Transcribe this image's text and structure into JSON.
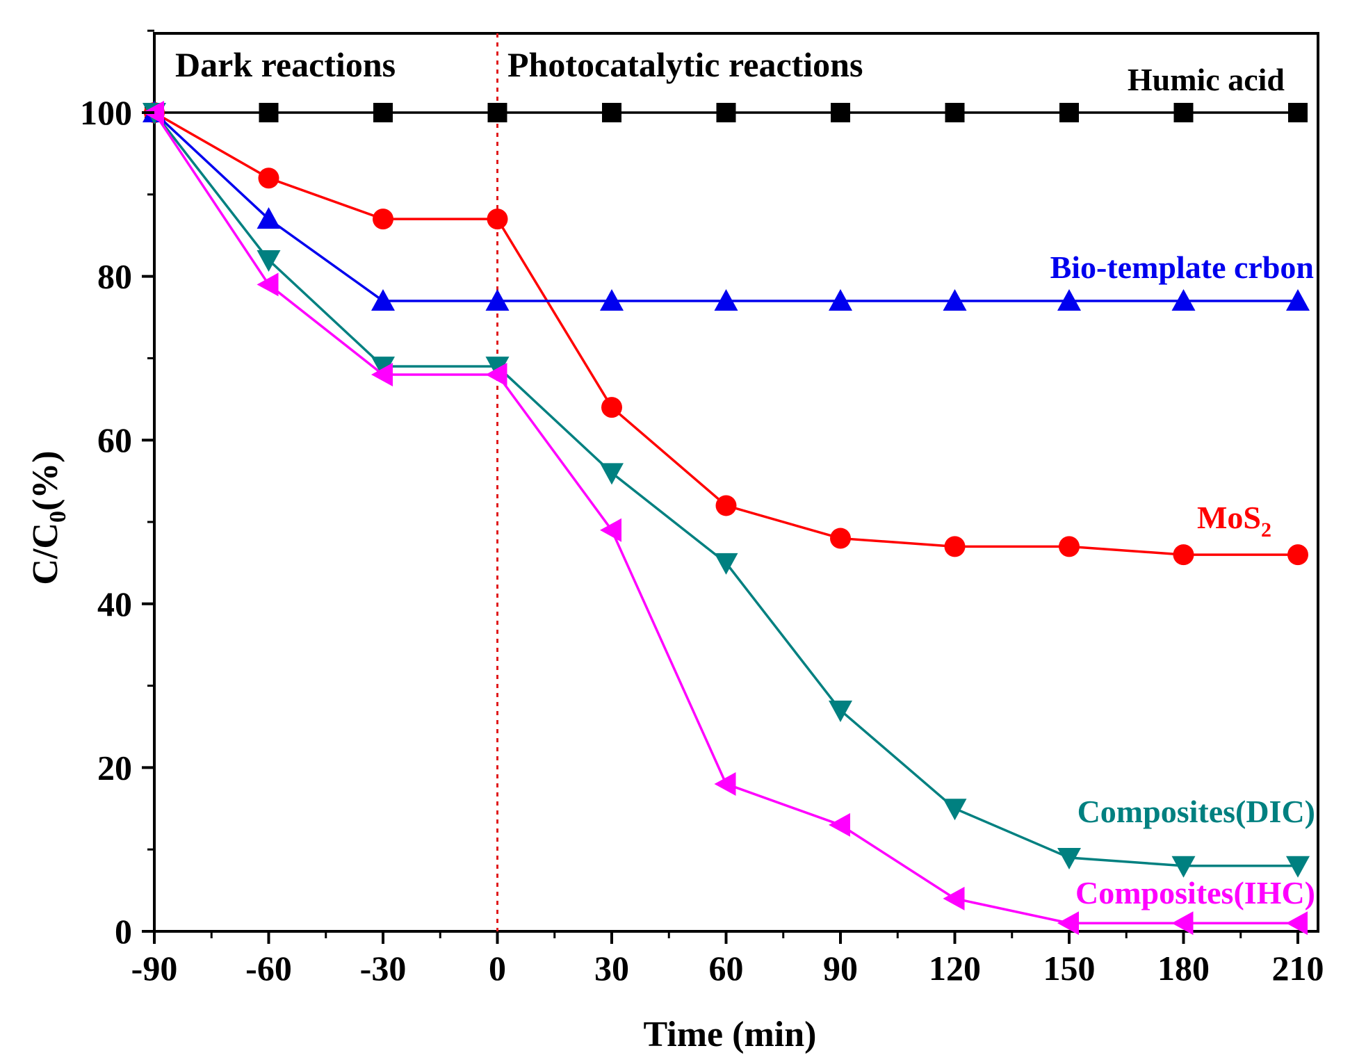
{
  "chart_data": {
    "type": "line",
    "title": "",
    "xlabel": "Time (min)",
    "ylabel": {
      "main": "C/C",
      "sub": "0",
      "suffix": "(%)"
    },
    "xlim": [
      -90,
      215
    ],
    "ylim": [
      0,
      110
    ],
    "x_ticks": [
      -90,
      -60,
      -30,
      0,
      30,
      60,
      90,
      120,
      150,
      180,
      210
    ],
    "x_tick_labels": [
      "-90",
      "-60",
      "-30",
      "0",
      "30",
      "60",
      "90",
      "120",
      "150",
      "180",
      "210"
    ],
    "y_ticks": [
      0,
      20,
      40,
      60,
      80,
      100
    ],
    "y_tick_labels": [
      "0",
      "20",
      "40",
      "60",
      "80",
      "100"
    ],
    "divider": {
      "x": 0,
      "style": "dotted",
      "color": "#e0191b"
    },
    "regions": [
      {
        "label": "Dark reactions"
      },
      {
        "label": "Photocatalytic reactions"
      }
    ],
    "x": [
      -90,
      -60,
      -30,
      0,
      30,
      60,
      90,
      120,
      150,
      180,
      210
    ],
    "series": [
      {
        "name": "Humic acid",
        "name_sub": "",
        "color": "#000000",
        "marker": "square",
        "values": [
          100,
          100,
          100,
          100,
          100,
          100,
          100,
          100,
          100,
          100,
          100
        ]
      },
      {
        "name": "MoS",
        "name_sub": "2",
        "color": "#ff0000",
        "marker": "circle",
        "values": [
          100,
          92,
          87,
          87,
          64,
          52,
          48,
          47,
          47,
          46,
          46
        ]
      },
      {
        "name": "Bio-template crbon",
        "name_sub": "",
        "color": "#0000ee",
        "marker": "triangle-up",
        "values": [
          100,
          87,
          77,
          77,
          77,
          77,
          77,
          77,
          77,
          77,
          77
        ]
      },
      {
        "name": "Composites(DIC)",
        "name_sub": "",
        "color": "#008080",
        "marker": "triangle-down",
        "values": [
          100,
          82,
          69,
          69,
          56,
          45,
          27,
          15,
          9,
          8,
          8
        ]
      },
      {
        "name": "Composites(IHC)",
        "name_sub": "",
        "color": "#ff00ff",
        "marker": "triangle-left",
        "values": [
          100,
          79,
          68,
          68,
          49,
          18,
          13,
          4,
          1,
          1,
          1
        ]
      }
    ],
    "legend": "inline labels next to each series on the right side",
    "grid": false
  }
}
